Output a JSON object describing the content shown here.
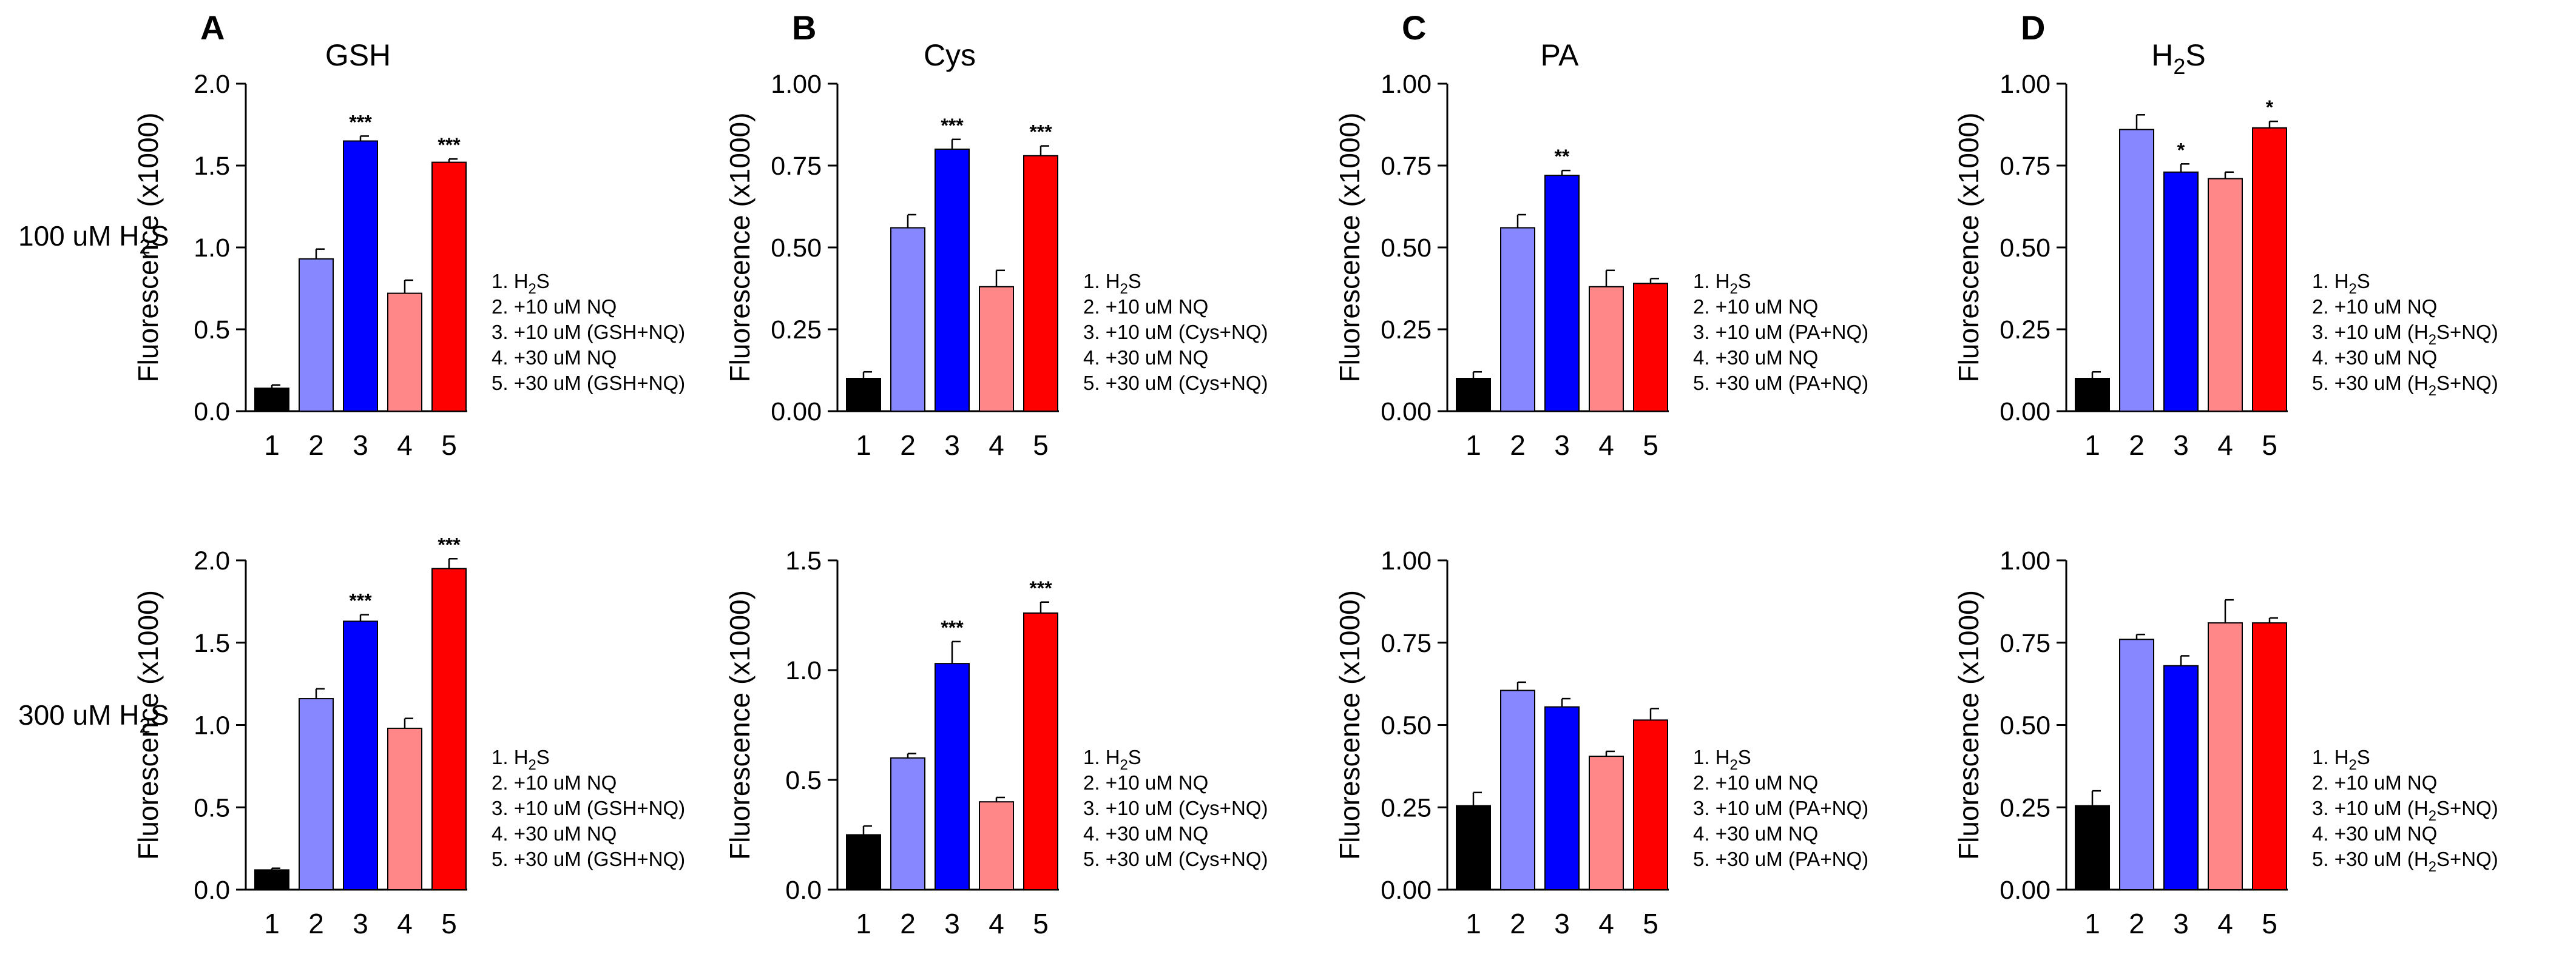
{
  "colors": {
    "bar1": "#000000",
    "bar2": "#8787ff",
    "bar3": "#0000ff",
    "bar4": "#ff8787",
    "bar5": "#ff0000",
    "axis": "#000000"
  },
  "row_labels": {
    "top": "100 uM H2S",
    "bottom": "300 uM H2S"
  },
  "chart_data": [
    {
      "panel": "A",
      "row": "top",
      "title": "GSH",
      "type": "bar",
      "ylabel": "Fluorescence (x1000)",
      "ylim": [
        0,
        2.0
      ],
      "yticks": [
        "0.0",
        "0.5",
        "1.0",
        "1.5",
        "2.0"
      ],
      "categories": [
        "1",
        "2",
        "3",
        "4",
        "5"
      ],
      "values": [
        0.14,
        0.93,
        1.65,
        0.72,
        1.52
      ],
      "errors": [
        0.02,
        0.06,
        0.03,
        0.08,
        0.02
      ],
      "significance": [
        "",
        "",
        "***",
        "",
        "***"
      ],
      "legend": [
        "1. H2S",
        "2. +10 uM NQ",
        "3. +10 uM (GSH+NQ)",
        "4. +30 uM NQ",
        "5. +30 uM (GSH+NQ)"
      ]
    },
    {
      "panel": "B",
      "row": "top",
      "title": "Cys",
      "type": "bar",
      "ylabel": "Fluorescence (x1000)",
      "ylim": [
        0,
        1.0
      ],
      "yticks": [
        "0.00",
        "0.25",
        "0.50",
        "0.75",
        "1.00"
      ],
      "categories": [
        "1",
        "2",
        "3",
        "4",
        "5"
      ],
      "values": [
        0.1,
        0.56,
        0.8,
        0.38,
        0.78
      ],
      "errors": [
        0.02,
        0.04,
        0.03,
        0.05,
        0.03
      ],
      "significance": [
        "",
        "",
        "***",
        "",
        "***"
      ],
      "legend": [
        "1. H2S",
        "2. +10 uM NQ",
        "3. +10 uM (Cys+NQ)",
        "4. +30 uM NQ",
        "5. +30 uM (Cys+NQ)"
      ]
    },
    {
      "panel": "C",
      "row": "top",
      "title": "PA",
      "type": "bar",
      "ylabel": "Fluorescence (x1000)",
      "ylim": [
        0,
        1.0
      ],
      "yticks": [
        "0.00",
        "0.25",
        "0.50",
        "0.75",
        "1.00"
      ],
      "categories": [
        "1",
        "2",
        "3",
        "4",
        "5"
      ],
      "values": [
        0.1,
        0.56,
        0.72,
        0.38,
        0.39
      ],
      "errors": [
        0.02,
        0.04,
        0.015,
        0.05,
        0.015
      ],
      "significance": [
        "",
        "",
        "**",
        "",
        ""
      ],
      "legend": [
        "1. H2S",
        "2. +10 uM NQ",
        "3. +10 uM (PA+NQ)",
        "4. +30 uM NQ",
        "5. +30 uM (PA+NQ)"
      ]
    },
    {
      "panel": "D",
      "row": "top",
      "title": "H2S",
      "type": "bar",
      "ylabel": "Fluorescence (x1000)",
      "ylim": [
        0,
        1.0
      ],
      "yticks": [
        "0.00",
        "0.25",
        "0.50",
        "0.75",
        "1.00"
      ],
      "categories": [
        "1",
        "2",
        "3",
        "4",
        "5"
      ],
      "values": [
        0.1,
        0.86,
        0.73,
        0.71,
        0.865
      ],
      "errors": [
        0.02,
        0.045,
        0.025,
        0.02,
        0.02
      ],
      "significance": [
        "",
        "",
        "*",
        "",
        "*"
      ],
      "legend": [
        "1. H2S",
        "2. +10 uM NQ",
        "3. +10 uM (H2S+NQ)",
        "4. +30 uM NQ",
        "5. +30 uM (H2S+NQ)"
      ]
    },
    {
      "panel": "A",
      "row": "bottom",
      "title": "",
      "type": "bar",
      "ylabel": "Fluorescence (x1000)",
      "ylim": [
        0,
        2.0
      ],
      "yticks": [
        "0.0",
        "0.5",
        "1.0",
        "1.5",
        "2.0"
      ],
      "categories": [
        "1",
        "2",
        "3",
        "4",
        "5"
      ],
      "values": [
        0.12,
        1.16,
        1.63,
        0.98,
        1.95
      ],
      "errors": [
        0.01,
        0.06,
        0.04,
        0.06,
        0.06
      ],
      "significance": [
        "",
        "",
        "***",
        "",
        "***"
      ],
      "legend": [
        "1. H2S",
        "2. +10 uM NQ",
        "3. +10 uM (GSH+NQ)",
        "4. +30 uM NQ",
        "5. +30 uM (GSH+NQ)"
      ]
    },
    {
      "panel": "B",
      "row": "bottom",
      "title": "",
      "type": "bar",
      "ylabel": "Fluorescence (x1000)",
      "ylim": [
        0,
        1.5
      ],
      "yticks": [
        "0.0",
        "0.5",
        "1.0",
        "1.5"
      ],
      "categories": [
        "1",
        "2",
        "3",
        "4",
        "5"
      ],
      "values": [
        0.25,
        0.6,
        1.03,
        0.4,
        1.26
      ],
      "errors": [
        0.04,
        0.02,
        0.1,
        0.02,
        0.05
      ],
      "significance": [
        "",
        "",
        "***",
        "",
        "***"
      ],
      "legend": [
        "1. H2S",
        "2. +10 uM NQ",
        "3. +10 uM (Cys+NQ)",
        "4. +30 uM NQ",
        "5. +30 uM (Cys+NQ)"
      ]
    },
    {
      "panel": "C",
      "row": "bottom",
      "title": "",
      "type": "bar",
      "ylabel": "Fluorescence (x1000)",
      "ylim": [
        0,
        1.0
      ],
      "yticks": [
        "0.00",
        "0.25",
        "0.50",
        "0.75",
        "1.00"
      ],
      "categories": [
        "1",
        "2",
        "3",
        "4",
        "5"
      ],
      "values": [
        0.255,
        0.605,
        0.555,
        0.405,
        0.515
      ],
      "errors": [
        0.04,
        0.025,
        0.025,
        0.015,
        0.035
      ],
      "significance": [
        "",
        "",
        "",
        "",
        ""
      ],
      "legend": [
        "1. H2S",
        "2. +10 uM NQ",
        "3. +10 uM (PA+NQ)",
        "4. +30 uM NQ",
        "5. +30 uM (PA+NQ)"
      ]
    },
    {
      "panel": "D",
      "row": "bottom",
      "title": "",
      "type": "bar",
      "ylabel": "Fluorescence (x1000)",
      "ylim": [
        0,
        1.0
      ],
      "yticks": [
        "0.00",
        "0.25",
        "0.50",
        "0.75",
        "1.00"
      ],
      "categories": [
        "1",
        "2",
        "3",
        "4",
        "5"
      ],
      "values": [
        0.255,
        0.76,
        0.68,
        0.81,
        0.81
      ],
      "errors": [
        0.045,
        0.015,
        0.03,
        0.07,
        0.015
      ],
      "significance": [
        "",
        "",
        "",
        "",
        ""
      ],
      "legend": [
        "1. H2S",
        "2. +10 uM NQ",
        "3. +10 uM (H2S+NQ)",
        "4. +30 uM NQ",
        "5. +30 uM (H2S+NQ)"
      ]
    }
  ]
}
